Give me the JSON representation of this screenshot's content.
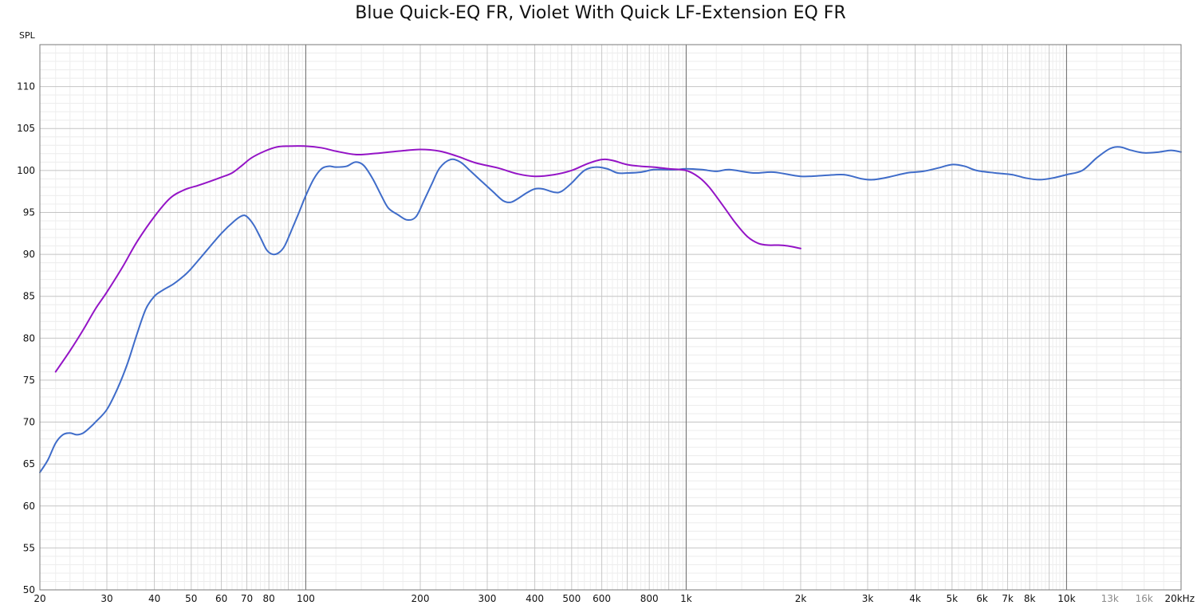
{
  "chart_data": {
    "type": "line",
    "title": "Blue Quick-EQ FR, Violet With Quick LF-Extension EQ FR",
    "ylabel": "SPL",
    "xlabel": "",
    "x_scale": "log",
    "xlim": [
      20,
      20000
    ],
    "ylim": [
      50,
      115
    ],
    "grid": true,
    "legend": "none",
    "x_ticks": [
      {
        "value": 20,
        "label": "20"
      },
      {
        "value": 30,
        "label": "30"
      },
      {
        "value": 40,
        "label": "40"
      },
      {
        "value": 50,
        "label": "50"
      },
      {
        "value": 60,
        "label": "60"
      },
      {
        "value": 70,
        "label": "70"
      },
      {
        "value": 80,
        "label": "80"
      },
      {
        "value": 100,
        "label": "100"
      },
      {
        "value": 200,
        "label": "200"
      },
      {
        "value": 300,
        "label": "300"
      },
      {
        "value": 400,
        "label": "400"
      },
      {
        "value": 500,
        "label": "500"
      },
      {
        "value": 600,
        "label": "600"
      },
      {
        "value": 800,
        "label": "800"
      },
      {
        "value": 1000,
        "label": "1k"
      },
      {
        "value": 2000,
        "label": "2k"
      },
      {
        "value": 3000,
        "label": "3k"
      },
      {
        "value": 4000,
        "label": "4k"
      },
      {
        "value": 5000,
        "label": "5k"
      },
      {
        "value": 6000,
        "label": "6k"
      },
      {
        "value": 7000,
        "label": "7k"
      },
      {
        "value": 8000,
        "label": "8k"
      },
      {
        "value": 10000,
        "label": "10k"
      },
      {
        "value": 13000,
        "label": "13k",
        "muted": true
      },
      {
        "value": 16000,
        "label": "16k",
        "muted": true
      },
      {
        "value": 20000,
        "label": "20kHz"
      }
    ],
    "y_ticks": [
      50,
      55,
      60,
      65,
      70,
      75,
      80,
      85,
      90,
      95,
      100,
      105,
      110
    ],
    "series": [
      {
        "color": "#3f6cc9",
        "points": [
          [
            20,
            64
          ],
          [
            21,
            65.5
          ],
          [
            22,
            67.5
          ],
          [
            23,
            68.5
          ],
          [
            24,
            68.7
          ],
          [
            25,
            68.5
          ],
          [
            26,
            68.7
          ],
          [
            27,
            69.3
          ],
          [
            28,
            70
          ],
          [
            30,
            71.5
          ],
          [
            32,
            74
          ],
          [
            34,
            77
          ],
          [
            36,
            80.5
          ],
          [
            38,
            83.5
          ],
          [
            40,
            85
          ],
          [
            42,
            85.7
          ],
          [
            45,
            86.5
          ],
          [
            48,
            87.5
          ],
          [
            50,
            88.3
          ],
          [
            55,
            90.5
          ],
          [
            60,
            92.5
          ],
          [
            65,
            94
          ],
          [
            68,
            94.6
          ],
          [
            70,
            94.5
          ],
          [
            73,
            93.5
          ],
          [
            76,
            92
          ],
          [
            79,
            90.5
          ],
          [
            82,
            90
          ],
          [
            85,
            90.2
          ],
          [
            88,
            91
          ],
          [
            92,
            93
          ],
          [
            96,
            95
          ],
          [
            100,
            97
          ],
          [
            105,
            99
          ],
          [
            110,
            100.2
          ],
          [
            115,
            100.5
          ],
          [
            120,
            100.4
          ],
          [
            128,
            100.5
          ],
          [
            135,
            101
          ],
          [
            142,
            100.6
          ],
          [
            150,
            99
          ],
          [
            158,
            97
          ],
          [
            165,
            95.5
          ],
          [
            175,
            94.7
          ],
          [
            185,
            94.1
          ],
          [
            195,
            94.5
          ],
          [
            205,
            96.5
          ],
          [
            215,
            98.5
          ],
          [
            225,
            100.3
          ],
          [
            240,
            101.3
          ],
          [
            255,
            101
          ],
          [
            270,
            100
          ],
          [
            290,
            98.7
          ],
          [
            310,
            97.5
          ],
          [
            330,
            96.4
          ],
          [
            345,
            96.2
          ],
          [
            360,
            96.6
          ],
          [
            380,
            97.3
          ],
          [
            400,
            97.8
          ],
          [
            420,
            97.8
          ],
          [
            450,
            97.4
          ],
          [
            470,
            97.5
          ],
          [
            500,
            98.5
          ],
          [
            540,
            100
          ],
          [
            580,
            100.4
          ],
          [
            620,
            100.2
          ],
          [
            660,
            99.7
          ],
          [
            700,
            99.7
          ],
          [
            760,
            99.8
          ],
          [
            820,
            100.1
          ],
          [
            880,
            100.1
          ],
          [
            940,
            100.1
          ],
          [
            1000,
            100.2
          ],
          [
            1100,
            100.1
          ],
          [
            1200,
            99.9
          ],
          [
            1300,
            100.1
          ],
          [
            1500,
            99.7
          ],
          [
            1700,
            99.8
          ],
          [
            2000,
            99.3
          ],
          [
            2300,
            99.4
          ],
          [
            2600,
            99.5
          ],
          [
            2900,
            99
          ],
          [
            3100,
            98.9
          ],
          [
            3400,
            99.2
          ],
          [
            3800,
            99.7
          ],
          [
            4200,
            99.9
          ],
          [
            4600,
            100.3
          ],
          [
            5000,
            100.7
          ],
          [
            5400,
            100.5
          ],
          [
            5800,
            100
          ],
          [
            6500,
            99.7
          ],
          [
            7200,
            99.5
          ],
          [
            7800,
            99.1
          ],
          [
            8500,
            98.9
          ],
          [
            9200,
            99.1
          ],
          [
            10000,
            99.5
          ],
          [
            11000,
            100
          ],
          [
            12000,
            101.5
          ],
          [
            13000,
            102.6
          ],
          [
            13800,
            102.8
          ],
          [
            14800,
            102.4
          ],
          [
            16000,
            102.1
          ],
          [
            17500,
            102.2
          ],
          [
            18800,
            102.4
          ],
          [
            20000,
            102.2
          ]
        ]
      },
      {
        "color": "#9414c6",
        "points": [
          [
            22,
            76
          ],
          [
            24,
            78.5
          ],
          [
            26,
            81
          ],
          [
            28,
            83.5
          ],
          [
            30,
            85.5
          ],
          [
            33,
            88.5
          ],
          [
            36,
            91.5
          ],
          [
            40,
            94.5
          ],
          [
            44,
            96.7
          ],
          [
            48,
            97.7
          ],
          [
            52,
            98.2
          ],
          [
            56,
            98.7
          ],
          [
            60,
            99.2
          ],
          [
            64,
            99.7
          ],
          [
            68,
            100.6
          ],
          [
            72,
            101.5
          ],
          [
            78,
            102.3
          ],
          [
            84,
            102.8
          ],
          [
            90,
            102.9
          ],
          [
            100,
            102.9
          ],
          [
            110,
            102.7
          ],
          [
            120,
            102.3
          ],
          [
            135,
            101.9
          ],
          [
            150,
            102
          ],
          [
            175,
            102.3
          ],
          [
            200,
            102.5
          ],
          [
            225,
            102.3
          ],
          [
            250,
            101.7
          ],
          [
            280,
            100.9
          ],
          [
            320,
            100.3
          ],
          [
            360,
            99.6
          ],
          [
            400,
            99.3
          ],
          [
            450,
            99.5
          ],
          [
            500,
            100
          ],
          [
            550,
            100.8
          ],
          [
            600,
            101.3
          ],
          [
            640,
            101.2
          ],
          [
            700,
            100.7
          ],
          [
            760,
            100.5
          ],
          [
            820,
            100.4
          ],
          [
            900,
            100.2
          ],
          [
            1000,
            100
          ],
          [
            1080,
            99.2
          ],
          [
            1150,
            98
          ],
          [
            1250,
            95.8
          ],
          [
            1350,
            93.7
          ],
          [
            1450,
            92.1
          ],
          [
            1550,
            91.3
          ],
          [
            1650,
            91.1
          ],
          [
            1750,
            91.1
          ],
          [
            1850,
            91
          ],
          [
            2000,
            90.7
          ]
        ]
      }
    ]
  }
}
